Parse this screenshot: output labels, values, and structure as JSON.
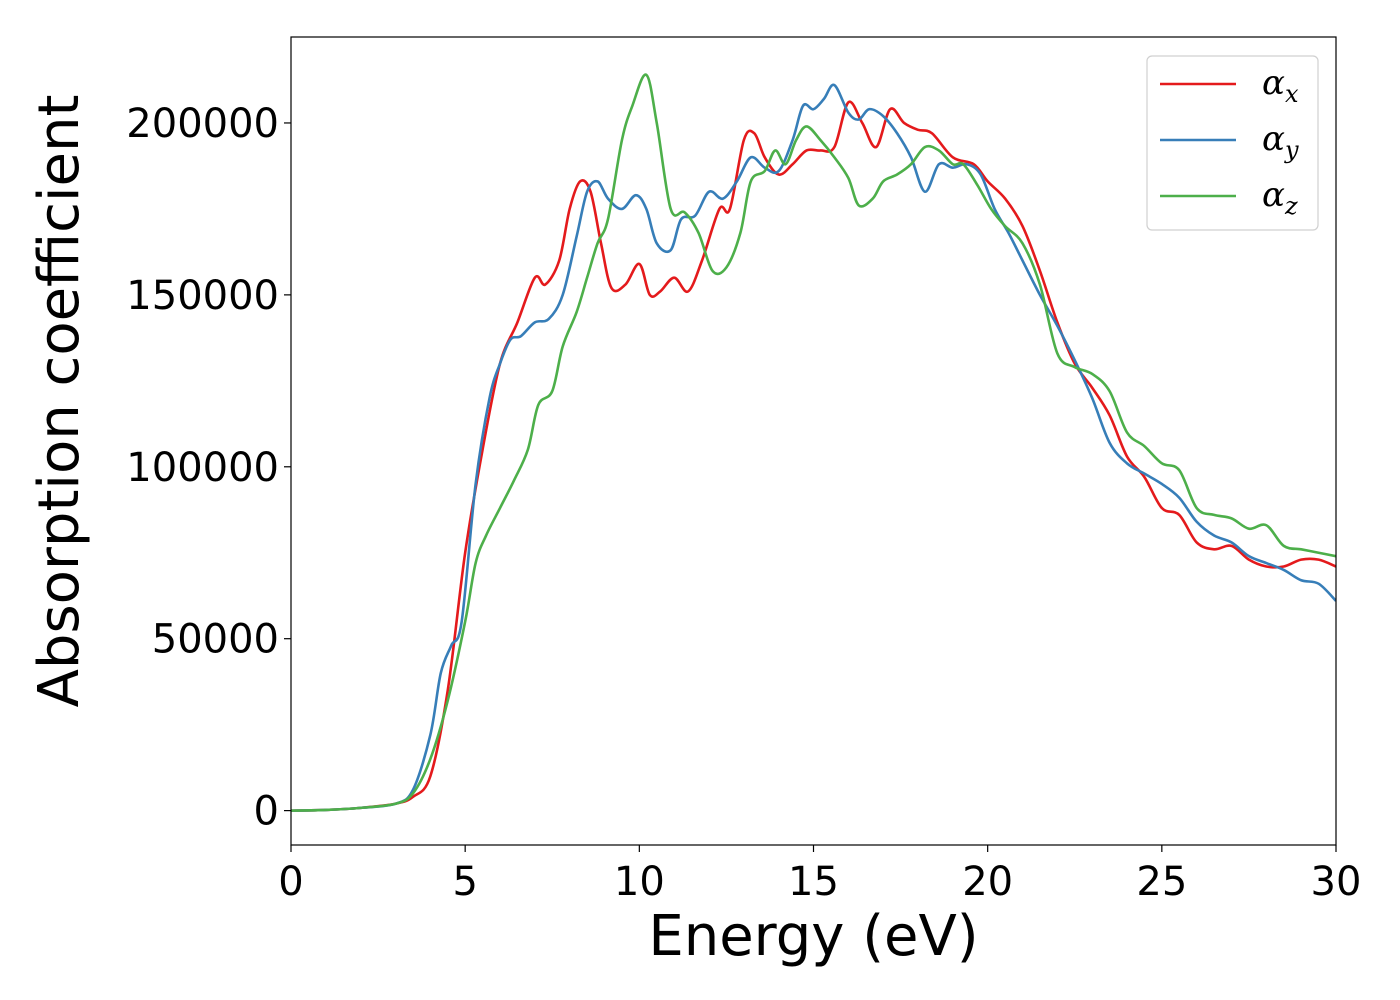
{
  "chart_data": {
    "type": "line",
    "xlabel": "Energy (eV)",
    "ylabel": "Absorption coefficient",
    "xlim": [
      0,
      30
    ],
    "ylim": [
      -10000,
      225000
    ],
    "xticks": [
      0,
      5,
      10,
      15,
      20,
      25,
      30
    ],
    "xtick_labels": [
      "0",
      "5",
      "10",
      "15",
      "20",
      "25",
      "30"
    ],
    "yticks": [
      0,
      50000,
      100000,
      150000,
      200000
    ],
    "ytick_labels": [
      "0",
      "50000",
      "100000",
      "150000",
      "200000"
    ],
    "grid": false,
    "legend_position": "top-right",
    "series": [
      {
        "name": "α_x",
        "legend_symbol": "α",
        "legend_subscript": "x",
        "color": "#e41a1c",
        "points": [
          [
            0,
            0
          ],
          [
            1,
            200
          ],
          [
            2,
            800
          ],
          [
            3,
            2000
          ],
          [
            3.5,
            4000
          ],
          [
            4,
            10000
          ],
          [
            4.5,
            35000
          ],
          [
            5,
            75000
          ],
          [
            5.5,
            105000
          ],
          [
            6,
            130000
          ],
          [
            6.5,
            142000
          ],
          [
            7,
            155000
          ],
          [
            7.3,
            153000
          ],
          [
            7.7,
            160000
          ],
          [
            8,
            175000
          ],
          [
            8.3,
            183000
          ],
          [
            8.6,
            180000
          ],
          [
            8.9,
            165000
          ],
          [
            9.2,
            152000
          ],
          [
            9.6,
            153000
          ],
          [
            10,
            159000
          ],
          [
            10.3,
            150000
          ],
          [
            10.6,
            151000
          ],
          [
            11,
            155000
          ],
          [
            11.4,
            151000
          ],
          [
            11.8,
            160000
          ],
          [
            12.3,
            175000
          ],
          [
            12.6,
            175000
          ],
          [
            13,
            195000
          ],
          [
            13.3,
            197000
          ],
          [
            13.6,
            190000
          ],
          [
            14,
            185000
          ],
          [
            14.4,
            188000
          ],
          [
            14.8,
            192000
          ],
          [
            15.2,
            192000
          ],
          [
            15.6,
            193000
          ],
          [
            16,
            206000
          ],
          [
            16.4,
            200000
          ],
          [
            16.8,
            193000
          ],
          [
            17.2,
            204000
          ],
          [
            17.6,
            200000
          ],
          [
            18,
            198000
          ],
          [
            18.4,
            197000
          ],
          [
            19,
            190000
          ],
          [
            19.6,
            188000
          ],
          [
            20,
            183000
          ],
          [
            20.5,
            178000
          ],
          [
            21,
            170000
          ],
          [
            21.5,
            157000
          ],
          [
            22,
            142000
          ],
          [
            22.5,
            130000
          ],
          [
            23,
            123000
          ],
          [
            23.5,
            115000
          ],
          [
            24,
            103000
          ],
          [
            24.5,
            97000
          ],
          [
            25,
            88000
          ],
          [
            25.5,
            86000
          ],
          [
            26,
            78000
          ],
          [
            26.5,
            76000
          ],
          [
            27,
            77000
          ],
          [
            27.5,
            73000
          ],
          [
            28,
            71000
          ],
          [
            28.5,
            71000
          ],
          [
            29,
            73000
          ],
          [
            29.5,
            73000
          ],
          [
            30,
            71000
          ]
        ]
      },
      {
        "name": "α_y",
        "legend_symbol": "α",
        "legend_subscript": "y",
        "color": "#377eb8",
        "points": [
          [
            0,
            0
          ],
          [
            1,
            200
          ],
          [
            2,
            800
          ],
          [
            3,
            2000
          ],
          [
            3.5,
            6000
          ],
          [
            4,
            22000
          ],
          [
            4.3,
            40000
          ],
          [
            4.6,
            48000
          ],
          [
            4.9,
            55000
          ],
          [
            5.3,
            95000
          ],
          [
            5.7,
            120000
          ],
          [
            6,
            130000
          ],
          [
            6.3,
            137000
          ],
          [
            6.6,
            138000
          ],
          [
            7,
            142000
          ],
          [
            7.4,
            143000
          ],
          [
            7.8,
            150000
          ],
          [
            8.2,
            167000
          ],
          [
            8.5,
            180000
          ],
          [
            8.8,
            183000
          ],
          [
            9.1,
            178000
          ],
          [
            9.5,
            175000
          ],
          [
            9.9,
            179000
          ],
          [
            10.2,
            175000
          ],
          [
            10.5,
            165000
          ],
          [
            10.9,
            163000
          ],
          [
            11.2,
            172000
          ],
          [
            11.6,
            173000
          ],
          [
            12,
            180000
          ],
          [
            12.4,
            178000
          ],
          [
            12.8,
            183000
          ],
          [
            13.2,
            190000
          ],
          [
            13.6,
            187000
          ],
          [
            14,
            186000
          ],
          [
            14.4,
            195000
          ],
          [
            14.7,
            205000
          ],
          [
            15,
            204000
          ],
          [
            15.3,
            207000
          ],
          [
            15.6,
            211000
          ],
          [
            16,
            203000
          ],
          [
            16.3,
            201000
          ],
          [
            16.6,
            204000
          ],
          [
            17,
            202000
          ],
          [
            17.4,
            197000
          ],
          [
            17.8,
            190000
          ],
          [
            18.2,
            180000
          ],
          [
            18.6,
            188000
          ],
          [
            19,
            187000
          ],
          [
            19.4,
            188000
          ],
          [
            19.8,
            185000
          ],
          [
            20.2,
            175000
          ],
          [
            20.6,
            168000
          ],
          [
            21,
            160000
          ],
          [
            21.5,
            150000
          ],
          [
            22,
            141000
          ],
          [
            22.5,
            131000
          ],
          [
            23,
            120000
          ],
          [
            23.5,
            107000
          ],
          [
            24,
            101000
          ],
          [
            24.5,
            98000
          ],
          [
            25,
            95000
          ],
          [
            25.5,
            91000
          ],
          [
            26,
            84000
          ],
          [
            26.5,
            80000
          ],
          [
            27,
            78000
          ],
          [
            27.5,
            74000
          ],
          [
            28,
            72000
          ],
          [
            28.5,
            70000
          ],
          [
            29,
            67000
          ],
          [
            29.5,
            66000
          ],
          [
            30,
            61000
          ]
        ]
      },
      {
        "name": "α_z",
        "legend_symbol": "α",
        "legend_subscript": "z",
        "color": "#4daf4a",
        "points": [
          [
            0,
            0
          ],
          [
            1,
            200
          ],
          [
            2,
            800
          ],
          [
            3,
            2000
          ],
          [
            3.5,
            5000
          ],
          [
            4,
            15000
          ],
          [
            4.5,
            32000
          ],
          [
            5,
            55000
          ],
          [
            5.3,
            72000
          ],
          [
            5.6,
            80000
          ],
          [
            6,
            88000
          ],
          [
            6.4,
            96000
          ],
          [
            6.8,
            105000
          ],
          [
            7.1,
            118000
          ],
          [
            7.5,
            122000
          ],
          [
            7.8,
            135000
          ],
          [
            8.2,
            145000
          ],
          [
            8.5,
            155000
          ],
          [
            8.8,
            165000
          ],
          [
            9.1,
            172000
          ],
          [
            9.5,
            195000
          ],
          [
            9.8,
            205000
          ],
          [
            10.2,
            214000
          ],
          [
            10.5,
            200000
          ],
          [
            10.9,
            175000
          ],
          [
            11.3,
            174000
          ],
          [
            11.7,
            168000
          ],
          [
            12.1,
            157000
          ],
          [
            12.5,
            158000
          ],
          [
            12.9,
            168000
          ],
          [
            13.2,
            183000
          ],
          [
            13.6,
            186000
          ],
          [
            13.9,
            192000
          ],
          [
            14.2,
            188000
          ],
          [
            14.5,
            195000
          ],
          [
            14.8,
            199000
          ],
          [
            15.2,
            195000
          ],
          [
            15.6,
            190000
          ],
          [
            16,
            184000
          ],
          [
            16.3,
            176000
          ],
          [
            16.7,
            178000
          ],
          [
            17,
            183000
          ],
          [
            17.4,
            185000
          ],
          [
            17.8,
            188000
          ],
          [
            18.2,
            193000
          ],
          [
            18.6,
            192000
          ],
          [
            19,
            188000
          ],
          [
            19.3,
            188000
          ],
          [
            19.7,
            182000
          ],
          [
            20.1,
            175000
          ],
          [
            20.5,
            170000
          ],
          [
            21,
            165000
          ],
          [
            21.5,
            153000
          ],
          [
            22,
            133000
          ],
          [
            22.5,
            129000
          ],
          [
            23,
            127000
          ],
          [
            23.5,
            122000
          ],
          [
            24,
            110000
          ],
          [
            24.5,
            106000
          ],
          [
            25,
            101000
          ],
          [
            25.5,
            99000
          ],
          [
            26,
            88000
          ],
          [
            26.5,
            86000
          ],
          [
            27,
            85000
          ],
          [
            27.5,
            82000
          ],
          [
            28,
            83000
          ],
          [
            28.5,
            77000
          ],
          [
            29,
            76000
          ],
          [
            29.5,
            75000
          ],
          [
            30,
            74000
          ]
        ]
      }
    ]
  }
}
